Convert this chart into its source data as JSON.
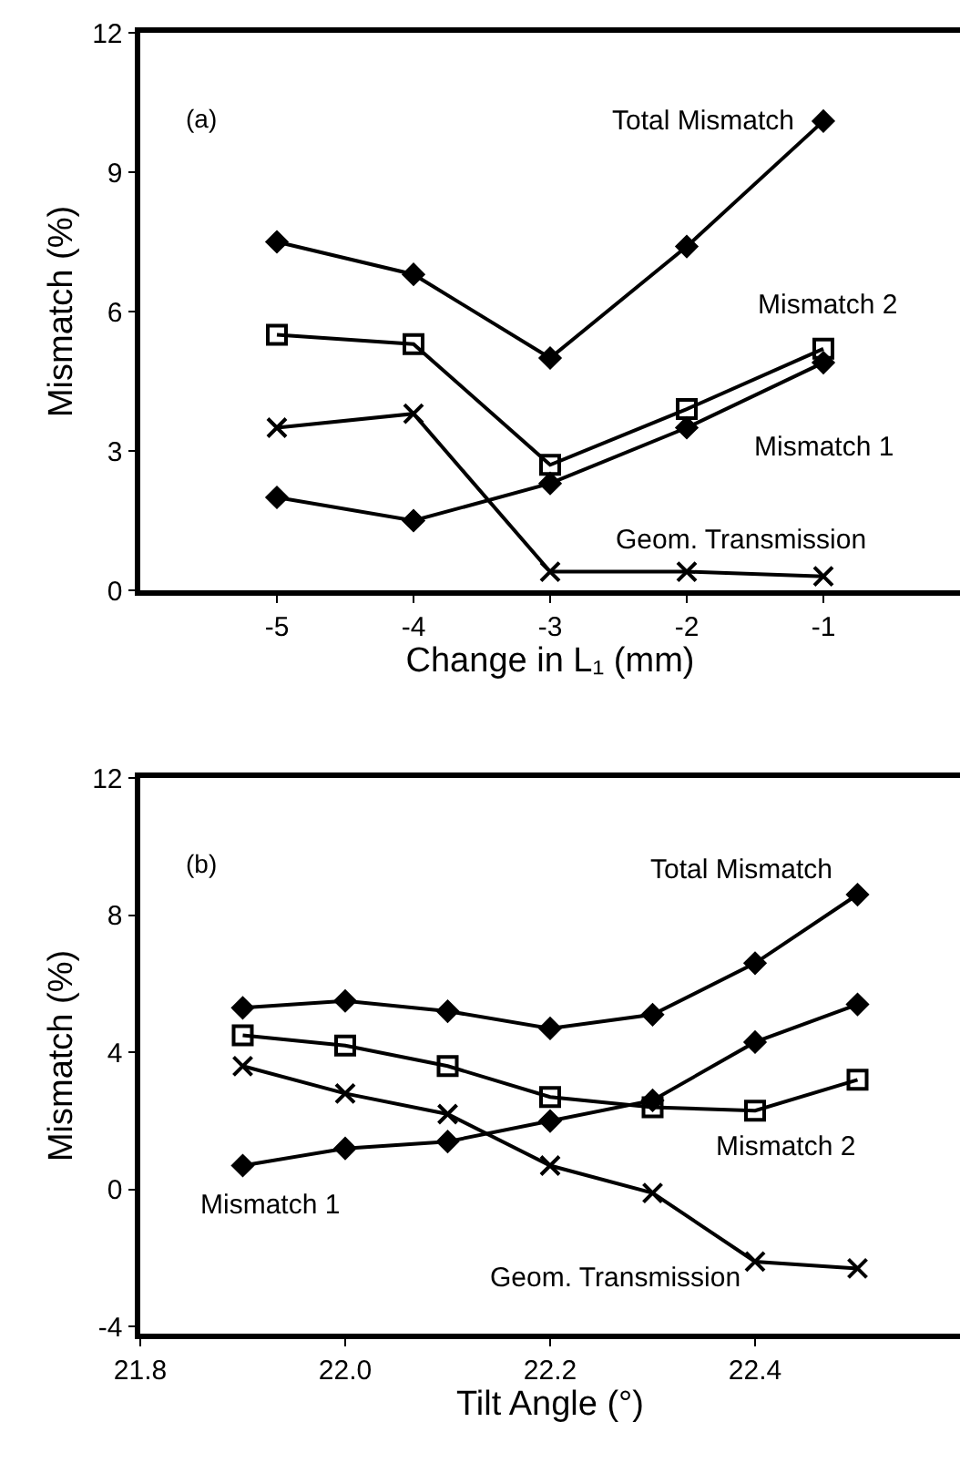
{
  "chart_data": [
    {
      "type": "line",
      "xlabel": "Change in L₁ (mm)",
      "ylabel": "Mismatch (%)",
      "x": [
        -5,
        -4,
        -3,
        -2,
        -1
      ],
      "xlim": [
        -6,
        0
      ],
      "xticks": [
        -5,
        -4,
        -3,
        -2,
        -1
      ],
      "ylim": [
        0,
        12
      ],
      "yticks": [
        0,
        3,
        6,
        9,
        12
      ],
      "annotations": [
        "(a)"
      ],
      "series": [
        {
          "name": "Total Mismatch",
          "color": "#000000",
          "marker": "diamond",
          "values": [
            7.5,
            6.8,
            5.0,
            7.4,
            10.1
          ]
        },
        {
          "name": "Mismatch 2",
          "color": "#000000",
          "marker": "square",
          "values": [
            5.5,
            5.3,
            2.7,
            3.9,
            5.2
          ]
        },
        {
          "name": "Mismatch 1",
          "color": "#000000",
          "marker": "diamond",
          "values": [
            2.0,
            1.5,
            2.3,
            3.5,
            4.9
          ]
        },
        {
          "name": "Geom. Transmission",
          "color": "#000000",
          "marker": "cross",
          "values": [
            3.5,
            3.8,
            0.4,
            0.4,
            0.3
          ]
        }
      ]
    },
    {
      "type": "line",
      "xlabel": "Tilt Angle (°)",
      "ylabel": "Mismatch (%)",
      "x": [
        21.9,
        22.0,
        22.1,
        22.2,
        22.3,
        22.4,
        22.5
      ],
      "xlim": [
        21.8,
        22.6
      ],
      "xticks": [
        {
          "value": 21.8,
          "label": "21.8"
        },
        {
          "value": 22.0,
          "label": "22.0"
        },
        {
          "value": 22.2,
          "label": "22.2"
        },
        {
          "value": 22.4,
          "label": "22.4"
        }
      ],
      "ylim": [
        -4.2,
        12
      ],
      "yticks": [
        -4,
        0,
        4,
        8,
        12
      ],
      "annotations": [
        "(b)"
      ],
      "series": [
        {
          "name": "Total Mismatch",
          "color": "#000000",
          "marker": "diamond",
          "values": [
            5.3,
            5.5,
            5.2,
            4.7,
            5.1,
            6.6,
            8.6
          ]
        },
        {
          "name": "Mismatch 2",
          "color": "#000000",
          "marker": "square",
          "values": [
            4.5,
            4.2,
            3.6,
            2.7,
            2.4,
            2.3,
            3.2
          ]
        },
        {
          "name": "Mismatch 1",
          "color": "#000000",
          "marker": "diamond",
          "values": [
            0.7,
            1.2,
            1.4,
            2.0,
            2.6,
            4.3,
            5.4
          ]
        },
        {
          "name": "Geom. Transmission",
          "color": "#000000",
          "marker": "cross",
          "values": [
            3.6,
            2.8,
            2.2,
            0.7,
            -0.1,
            -2.1,
            -2.3
          ]
        }
      ]
    }
  ]
}
